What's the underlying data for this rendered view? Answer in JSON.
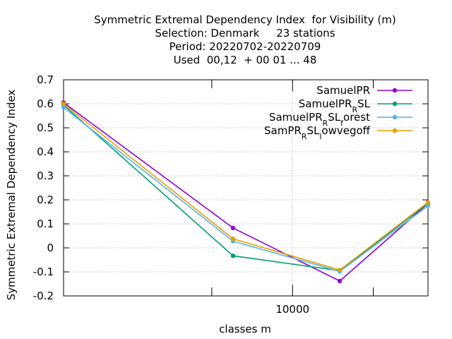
{
  "chart_data": {
    "type": "line",
    "title_lines": [
      "Symmetric Extremal Dependency Index  for Visibility (m)",
      "Selection: Denmark     23 stations",
      "Period: 20220702-20220709",
      "Used  00,12  + 00 01 ... 48"
    ],
    "xlabel": "classes m",
    "ylabel": "Symmetric Extremal Dependency Index",
    "x_scale": "log",
    "xlim": [
      1400,
      32000
    ],
    "ylim": [
      -0.2,
      0.7
    ],
    "y_ticks": [
      -0.2,
      -0.1,
      0,
      0.1,
      0.2,
      0.3,
      0.4,
      0.5,
      0.6,
      0.7
    ],
    "y_tick_labels": [
      "-0.2",
      "-0.1",
      "0",
      "0.1",
      "0.2",
      "0.3",
      "0.4",
      "0.5",
      "0.6",
      "0.7"
    ],
    "x_tick_labels": [
      {
        "value": 10000,
        "label": "10000"
      }
    ],
    "x_minor_ticks": [
      5000,
      20000
    ],
    "grid": true,
    "legend_position": "top-right",
    "x": [
      1400,
      6000,
      15000,
      32000
    ],
    "series": [
      {
        "name": "SamuelPR",
        "legend": {
          "parts": [
            {
              "t": "SamuelPR"
            }
          ]
        },
        "color": "#9400d3",
        "values": [
          0.605,
          0.083,
          -0.138,
          0.185
        ]
      },
      {
        "name": "SamuelPR_R SL",
        "legend": {
          "parts": [
            {
              "t": "SamuelPR"
            },
            {
              "t": "R",
              "sub": true
            },
            {
              "t": "SL"
            }
          ]
        },
        "color": "#009e73",
        "values": [
          0.595,
          -0.033,
          -0.095,
          0.185
        ]
      },
      {
        "name": "SamuelPR_R SL_f orest",
        "legend": {
          "parts": [
            {
              "t": "SamuelPR"
            },
            {
              "t": "R",
              "sub": true
            },
            {
              "t": "SL"
            },
            {
              "t": "f",
              "sub": true
            },
            {
              "t": "orest"
            }
          ]
        },
        "color": "#56b4e9",
        "values": [
          0.585,
          0.028,
          -0.098,
          0.175
        ]
      },
      {
        "name": "SamPR_R SL_l owvegoff",
        "legend": {
          "parts": [
            {
              "t": "SamPR"
            },
            {
              "t": "R",
              "sub": true
            },
            {
              "t": "SL"
            },
            {
              "t": "l",
              "sub": true
            },
            {
              "t": "owvegoff"
            }
          ]
        },
        "color": "#e69f00",
        "values": [
          0.6,
          0.038,
          -0.092,
          0.19
        ]
      }
    ]
  }
}
